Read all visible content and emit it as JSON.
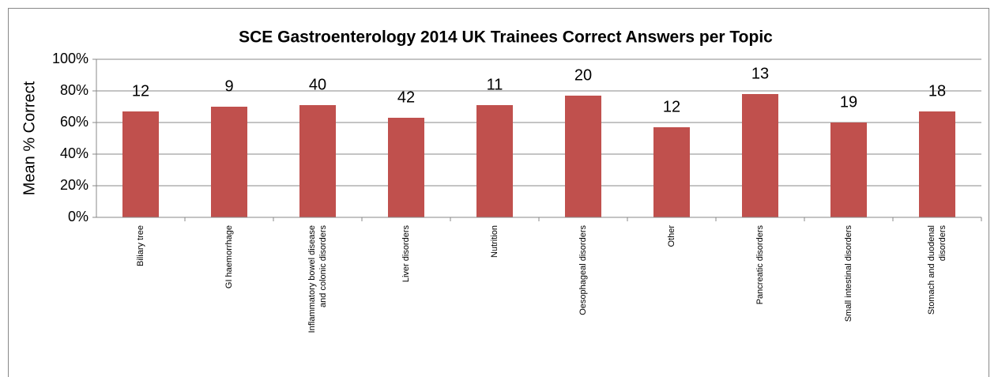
{
  "chart_data": {
    "type": "bar",
    "title": "SCE Gastroenterology 2014 UK Trainees Correct Answers per Topic",
    "y_label": "Mean % Correct",
    "categories": [
      "Biliary tree",
      "GI haemorrhage",
      [
        "Inflammatory bowel disease",
        "and colonic disorders"
      ],
      "Liver disorders",
      "Nutrition",
      "Oesophageal disorders",
      "Other",
      "Pancreatic disorders",
      "Small intestinal disorders",
      [
        "Stomach and duodenal",
        "disorders"
      ]
    ],
    "values": [
      67,
      70,
      71,
      63,
      71,
      77,
      57,
      78,
      60,
      67
    ],
    "bar_labels": [
      12,
      9,
      40,
      42,
      11,
      20,
      12,
      13,
      19,
      18
    ],
    "color": "#c0504d",
    "ylim": [
      0,
      100
    ],
    "yticks": [
      {
        "value": 0,
        "label": "0%"
      },
      {
        "value": 20,
        "label": "20%"
      },
      {
        "value": 40,
        "label": "40%"
      },
      {
        "value": 60,
        "label": "60%"
      },
      {
        "value": 80,
        "label": "80%"
      },
      {
        "value": 100,
        "label": "100%"
      }
    ],
    "grid": true
  }
}
